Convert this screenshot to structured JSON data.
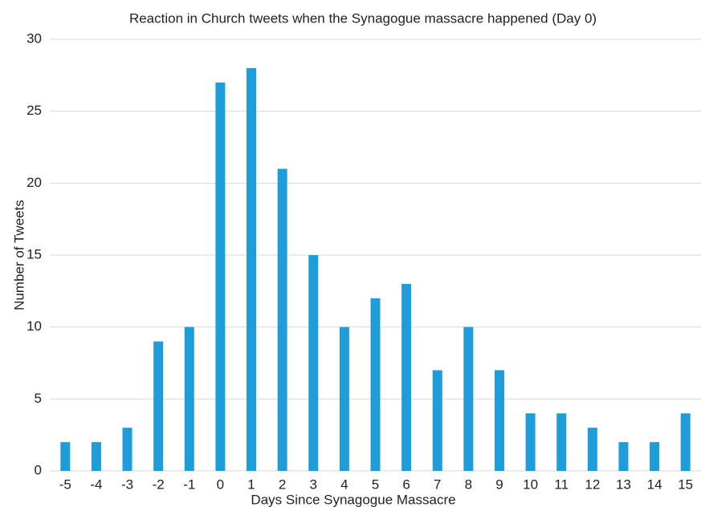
{
  "chart_data": {
    "type": "bar",
    "title": "Reaction in Church tweets when the Synagogue massacre happened (Day 0)",
    "x_label": "Days Since Synagogue Massacre",
    "y_label": "Number of Tweets",
    "categories": [
      "-5",
      "-4",
      "-3",
      "-2",
      "-1",
      "0",
      "1",
      "2",
      "3",
      "4",
      "5",
      "6",
      "7",
      "8",
      "9",
      "10",
      "11",
      "12",
      "13",
      "14",
      "15"
    ],
    "values": [
      2,
      2,
      3,
      9,
      10,
      27,
      28,
      21,
      15,
      10,
      12,
      13,
      7,
      10,
      7,
      4,
      4,
      3,
      2,
      2,
      4
    ],
    "color": "#1f9ddb",
    "ylim": [
      0,
      30
    ],
    "yticks": [
      0,
      5,
      10,
      15,
      20,
      25,
      30
    ],
    "grid": true
  }
}
